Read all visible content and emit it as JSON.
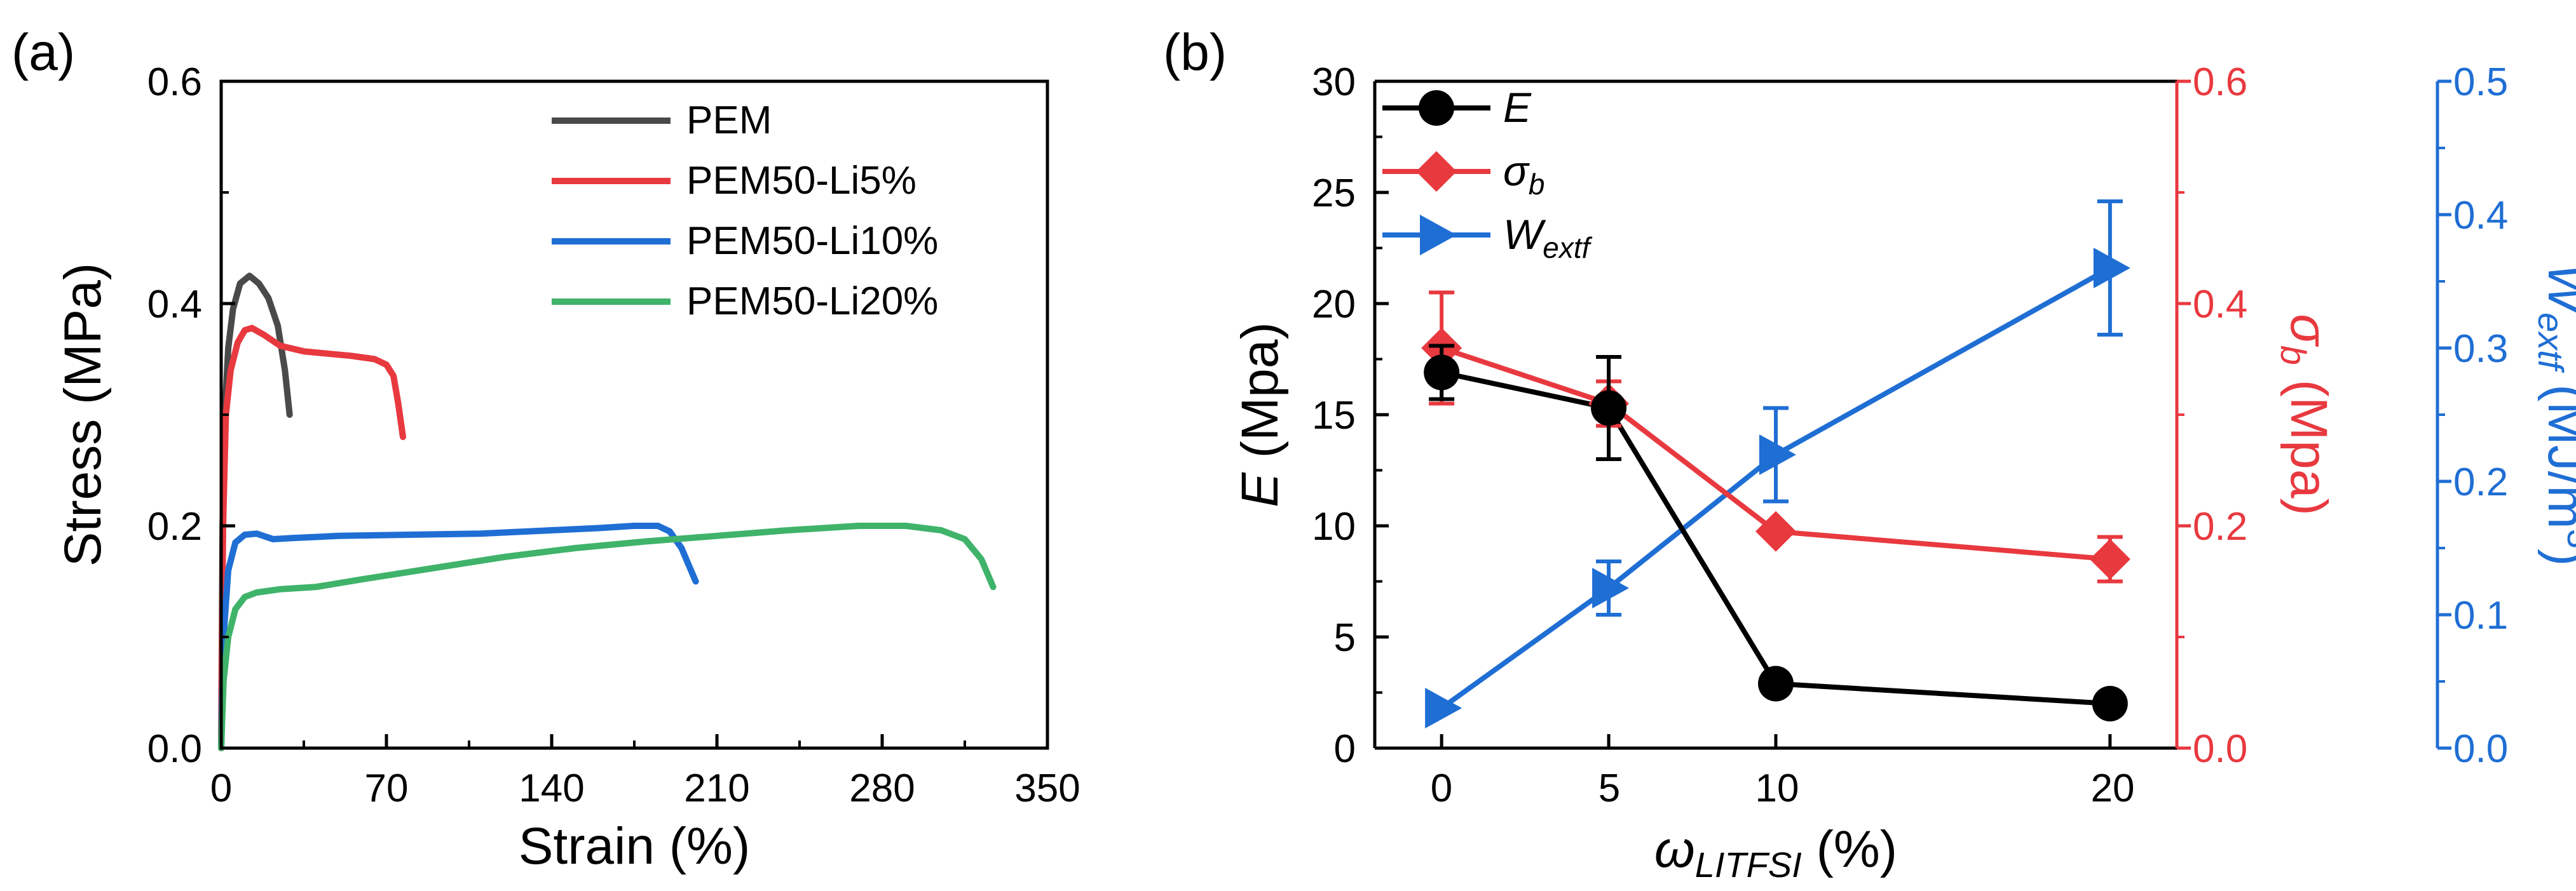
{
  "colors": {
    "black": "#000000",
    "gray": "#4a4a4a",
    "red": "#e8393f",
    "blue": "#1f6ed4",
    "green": "#3fb36a"
  },
  "chart_data": [
    {
      "type": "line",
      "panel_label": "(a)",
      "xlabel": "Strain (%)",
      "ylabel": "Stress (MPa)",
      "xlim": [
        0,
        350
      ],
      "ylim": [
        0,
        0.6
      ],
      "xticks": [
        "0",
        "70",
        "140",
        "210",
        "280",
        "350"
      ],
      "yticks": [
        "0.0",
        "0.2",
        "0.4",
        "0.6"
      ],
      "legend_position": "top-right",
      "series": [
        {
          "name": "PEM",
          "color": "#4a4a4a",
          "points": [
            [
              0,
              0.0
            ],
            [
              0.6,
              0.2
            ],
            [
              1.5,
              0.3
            ],
            [
              3,
              0.36
            ],
            [
              5,
              0.395
            ],
            [
              8,
              0.418
            ],
            [
              12,
              0.425
            ],
            [
              16,
              0.418
            ],
            [
              20,
              0.405
            ],
            [
              24,
              0.38
            ],
            [
              27,
              0.34
            ],
            [
              29,
              0.3
            ]
          ]
        },
        {
          "name": "PEM50-Li5%",
          "color": "#e8393f",
          "points": [
            [
              0,
              0.0
            ],
            [
              0.8,
              0.2
            ],
            [
              2,
              0.3
            ],
            [
              4,
              0.34
            ],
            [
              7,
              0.365
            ],
            [
              10,
              0.376
            ],
            [
              13,
              0.378
            ],
            [
              18,
              0.372
            ],
            [
              25,
              0.362
            ],
            [
              35,
              0.357
            ],
            [
              45,
              0.355
            ],
            [
              55,
              0.353
            ],
            [
              65,
              0.35
            ],
            [
              70,
              0.345
            ],
            [
              73,
              0.335
            ],
            [
              75,
              0.31
            ],
            [
              77,
              0.28
            ]
          ]
        },
        {
          "name": "PEM50-Li10%",
          "color": "#1f6ed4",
          "points": [
            [
              0,
              0.0
            ],
            [
              1,
              0.1
            ],
            [
              3,
              0.16
            ],
            [
              6,
              0.185
            ],
            [
              10,
              0.192
            ],
            [
              15,
              0.193
            ],
            [
              22,
              0.188
            ],
            [
              30,
              0.189
            ],
            [
              50,
              0.191
            ],
            [
              80,
              0.192
            ],
            [
              110,
              0.193
            ],
            [
              140,
              0.196
            ],
            [
              160,
              0.198
            ],
            [
              175,
              0.2
            ],
            [
              185,
              0.2
            ],
            [
              190,
              0.195
            ],
            [
              195,
              0.18
            ],
            [
              198,
              0.165
            ],
            [
              201,
              0.15
            ]
          ]
        },
        {
          "name": "PEM50-Li20%",
          "color": "#3fb36a",
          "points": [
            [
              0,
              0.0
            ],
            [
              1,
              0.06
            ],
            [
              3,
              0.1
            ],
            [
              6,
              0.125
            ],
            [
              10,
              0.136
            ],
            [
              15,
              0.14
            ],
            [
              25,
              0.143
            ],
            [
              40,
              0.145
            ],
            [
              60,
              0.152
            ],
            [
              90,
              0.162
            ],
            [
              120,
              0.172
            ],
            [
              150,
              0.18
            ],
            [
              180,
              0.186
            ],
            [
              210,
              0.191
            ],
            [
              240,
              0.196
            ],
            [
              270,
              0.2
            ],
            [
              290,
              0.2
            ],
            [
              305,
              0.196
            ],
            [
              315,
              0.188
            ],
            [
              322,
              0.17
            ],
            [
              327,
              0.145
            ]
          ]
        }
      ]
    },
    {
      "type": "line",
      "panel_label": "(b)",
      "xlabel_symbol": "ω",
      "xlabel_sub": "LITFSI",
      "xlabel_unit": " (%)",
      "categories": [
        "0",
        "5",
        "10",
        "20"
      ],
      "xticks": [
        "0",
        "5",
        "10",
        "20"
      ],
      "left_axis": {
        "label_symbol": "E",
        "label_unit": " (Mpa)",
        "ylim": [
          0,
          30
        ],
        "ticks": [
          "0",
          "5",
          "10",
          "15",
          "20",
          "25",
          "30"
        ]
      },
      "right_axis_1": {
        "label_symbol": "σ",
        "label_sub": "b",
        "label_unit": " (Mpa)",
        "ylim": [
          0,
          0.6
        ],
        "ticks": [
          "0.0",
          "0.2",
          "0.4",
          "0.6"
        ]
      },
      "right_axis_2": {
        "label_symbol": "W",
        "label_sub": "extf",
        "label_unit": " (MJ/m",
        "label_sup": "3",
        "label_close": ")",
        "ylim": [
          0,
          0.5
        ],
        "ticks": [
          "0.0",
          "0.1",
          "0.2",
          "0.3",
          "0.4",
          "0.5"
        ]
      },
      "legend_position": "top-left",
      "series": [
        {
          "name": "E",
          "legend_symbol": "E",
          "legend_sub": "",
          "axis": "left",
          "color": "#000000",
          "marker": "circle",
          "values": [
            16.9,
            15.3,
            2.9,
            2.0
          ],
          "errors": [
            1.2,
            2.3,
            0,
            0
          ]
        },
        {
          "name": "σb",
          "legend_symbol": "σ",
          "legend_sub": "b",
          "axis": "right_1",
          "color": "#e8393f",
          "marker": "diamond",
          "values": [
            0.36,
            0.31,
            0.195,
            0.17
          ],
          "errors": [
            0.05,
            0.02,
            0,
            0.02
          ]
        },
        {
          "name": "Wextf",
          "legend_symbol": "W",
          "legend_sub": "extf",
          "axis": "right_2",
          "color": "#1f6ed4",
          "marker": "triangle-right",
          "values": [
            0.03,
            0.12,
            0.22,
            0.36
          ],
          "errors": [
            0,
            0.02,
            0.035,
            0.05
          ]
        }
      ]
    }
  ]
}
